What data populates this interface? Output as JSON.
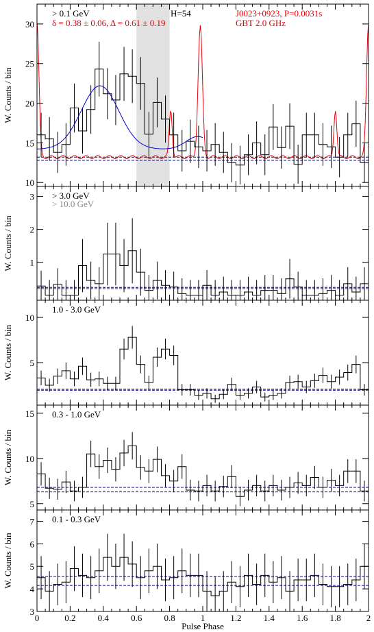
{
  "chart_data": [
    {
      "type": "histogram",
      "panel": "> 0.1 GeV",
      "ylabel": "W. Counts / bin",
      "ylim": [
        9.5,
        32.5
      ],
      "yticks": [
        10,
        15,
        20,
        25,
        30
      ],
      "annotations": {
        "energy": "> 0.1 GeV",
        "stats": "δ = 0.38 ± 0.06, Δ = 0.61 ± 0.19",
        "h": "H=54",
        "pulsar": "J0023+0923, P=0.0031s",
        "radio": "GBT 2.0 GHz"
      },
      "shade": [
        0.6,
        0.8
      ],
      "values": [
        16.0,
        15.5,
        13.8,
        14.8,
        19.4,
        16.5,
        19.2,
        24.3,
        21.2,
        20.4,
        23.7,
        23.4,
        22.5,
        16.1,
        20.1,
        18.0,
        16.0,
        14.0,
        15.2,
        14.5,
        14.0,
        14.8,
        13.8,
        12.5,
        12.2,
        13.5,
        15.0,
        13.5,
        17.0,
        14.4,
        17.1,
        12.3,
        16.0,
        16.0,
        14.8,
        14.5,
        13.2,
        16.0,
        17.4,
        12.5
      ],
      "background": [
        12.8,
        13.2
      ],
      "sine_fit": {
        "name": "fit",
        "color": "#0000cc"
      },
      "radio_profile": {
        "name": "radio",
        "color": "#e8000b"
      }
    },
    {
      "type": "histogram",
      "panel": "> 3.0 GeV",
      "ylabel": "W. Counts / bin",
      "ylim": [
        -0.15,
        3.3
      ],
      "yticks": [
        1,
        2,
        3
      ],
      "annotations": {
        "energy": "> 3.0 GeV",
        "energy2": "> 10.0 GeV"
      },
      "values": [
        0.28,
        0.0,
        0.33,
        0.0,
        0.0,
        0.9,
        0.45,
        0.35,
        1.25,
        1.25,
        0.9,
        1.35,
        0.7,
        0.15,
        0.45,
        0.3,
        0.25,
        0.05,
        0.0,
        0.0,
        0.3,
        0.0,
        0.1,
        0.0,
        0.0,
        0.1,
        0.0,
        0.15,
        0.15,
        0.05,
        0.5,
        0.25,
        0.0,
        0.0,
        0.05,
        0.15,
        0.0,
        0.35,
        0.1,
        0.35
      ],
      "background": [
        0.2,
        0.24
      ]
    },
    {
      "type": "histogram",
      "panel": "1.0 - 3.0 GeV",
      "ylabel": "W. Counts / bin",
      "ylim": [
        0.3,
        11.9
      ],
      "yticks": [
        5,
        10
      ],
      "annotations": {
        "energy": "1.0 - 3.0 GeV"
      },
      "values": [
        3.3,
        2.5,
        3.5,
        4.1,
        3.2,
        4.6,
        3.1,
        3.2,
        2.7,
        2.7,
        6.5,
        7.8,
        4.8,
        2.8,
        5.6,
        6.5,
        5.8,
        2.0,
        2.0,
        1.4,
        1.6,
        1.0,
        1.5,
        2.6,
        1.4,
        1.6,
        2.3,
        1.2,
        1.4,
        1.6,
        2.8,
        2.9,
        2.3,
        3.0,
        3.6,
        2.9,
        3.4,
        3.9,
        4.8,
        2.0
      ],
      "background": [
        1.95,
        2.05
      ]
    },
    {
      "type": "histogram",
      "panel": "0.3 - 1.0 GeV",
      "ylabel": "W. Counts / bin",
      "ylim": [
        4.3,
        15.9
      ],
      "yticks": [
        5,
        10,
        15
      ],
      "annotations": {
        "energy": "0.3 - 1.0 GeV"
      },
      "values": [
        8.3,
        6.7,
        6.6,
        7.4,
        6.4,
        6.8,
        10.5,
        9.1,
        9.8,
        8.8,
        10.6,
        11.4,
        9.0,
        8.6,
        9.9,
        8.1,
        7.5,
        9.1,
        6.5,
        6.4,
        7.0,
        6.4,
        6.9,
        8.0,
        5.8,
        6.5,
        7.0,
        6.4,
        7.0,
        6.5,
        6.8,
        7.3,
        7.0,
        7.9,
        6.8,
        7.6,
        7.0,
        8.6,
        8.6,
        6.4
      ],
      "background": [
        6.3,
        6.8
      ]
    },
    {
      "type": "histogram",
      "panel": "0.1 - 0.3 GeV",
      "xlabel": "Pulse Phase",
      "ylabel": "W. Counts / bin",
      "xlim": [
        0,
        2
      ],
      "xticks": [
        "0",
        "0.2",
        "0.4",
        "0.6",
        "0.8",
        "1",
        "1.2",
        "1.4",
        "1.6",
        "1.8",
        "2"
      ],
      "ylim": [
        3.0,
        7.5
      ],
      "yticks": [
        3,
        4,
        5,
        6,
        7
      ],
      "annotations": {
        "energy": "0.1 - 0.3 GeV"
      },
      "values": [
        4.5,
        3.9,
        4.2,
        4.3,
        4.9,
        4.6,
        4.5,
        4.8,
        5.4,
        5.0,
        5.4,
        5.1,
        4.5,
        4.8,
        5.0,
        4.4,
        4.5,
        4.8,
        4.6,
        4.6,
        3.9,
        3.7,
        3.9,
        4.3,
        4.1,
        4.6,
        4.2,
        4.6,
        4.3,
        4.5,
        3.9,
        4.4,
        4.4,
        4.6,
        4.2,
        4.1,
        4.1,
        4.2,
        4.4,
        5.0
      ],
      "background": [
        4.15,
        4.55
      ]
    }
  ]
}
